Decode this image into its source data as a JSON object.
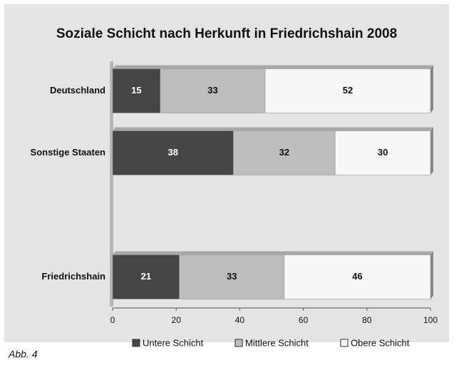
{
  "chart_data": {
    "type": "stacked-barh",
    "title": "Soziale Schicht nach Herkunft in Friedrichshain 2008",
    "categories": [
      "Deutschland",
      "Sonstige Staaten",
      null,
      "Friedrichshain"
    ],
    "series": [
      {
        "name": "Untere Schicht",
        "color": "#454545",
        "values": [
          15,
          38,
          null,
          21
        ]
      },
      {
        "name": "Mittlere Schicht",
        "color": "#bdbdbd",
        "values": [
          33,
          32,
          null,
          33
        ]
      },
      {
        "name": "Obere Schicht",
        "color": "#f7f7f7",
        "values": [
          52,
          30,
          null,
          46
        ]
      }
    ],
    "xlim": [
      0,
      100
    ],
    "xticks": [
      0,
      20,
      40,
      60,
      80,
      100
    ],
    "caption": "Abb. 4"
  }
}
